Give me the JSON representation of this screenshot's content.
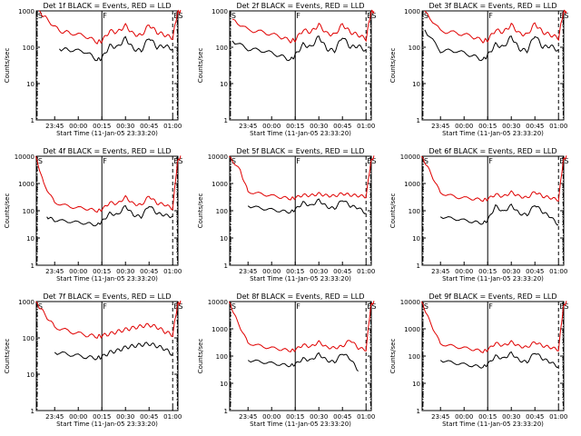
{
  "chart_data": [
    {
      "type": "line",
      "title": "Det 1f BLACK = Events, RED = LLD",
      "ylabel": "Counts/sec",
      "xlabel": "Start Time (11-Jan-05 23:33:20)",
      "xticks": [
        "23:45",
        "00:00",
        "00:15",
        "00:30",
        "00:45",
        "01:00"
      ],
      "yscale": "log",
      "ylim": [
        1,
        1000
      ],
      "yticks": [
        "1",
        "10",
        "100",
        "1000"
      ],
      "markers": [
        {
          "label": "S",
          "x": "23:33"
        },
        {
          "label": "F",
          "x": "00:15"
        },
        {
          "label": "E",
          "x": "01:00"
        },
        {
          "label": "S",
          "x": "01:03"
        }
      ],
      "series": [
        {
          "color": "#000000",
          "x": [
            "23:48",
            "23:55",
            "00:05",
            "00:12",
            "00:15",
            "00:20",
            "00:25",
            "00:30",
            "00:35",
            "00:40",
            "00:45",
            "00:50",
            "00:55",
            "01:00"
          ],
          "y": [
            90,
            85,
            75,
            45,
            50,
            110,
            100,
            180,
            90,
            80,
            190,
            100,
            110,
            90
          ]
        },
        {
          "color": "#e00000",
          "x": [
            "23:35",
            "23:40",
            "23:48",
            "23:55",
            "00:05",
            "00:12",
            "00:15",
            "00:20",
            "00:25",
            "00:30",
            "00:35",
            "00:40",
            "00:45",
            "00:50",
            "00:55",
            "01:00",
            "01:03",
            "01:05"
          ],
          "y": [
            1000,
            600,
            280,
            250,
            200,
            140,
            150,
            280,
            260,
            400,
            230,
            210,
            420,
            260,
            220,
            180,
            900,
            1000
          ]
        }
      ]
    },
    {
      "type": "line",
      "title": "Det 2f BLACK = Events, RED = LLD",
      "ylabel": "Counts/sec",
      "xlabel": "Start Time (11-Jan-05 23:33:20)",
      "xticks": [
        "23:45",
        "00:00",
        "00:15",
        "00:30",
        "00:45",
        "01:00"
      ],
      "yscale": "log",
      "ylim": [
        1,
        1000
      ],
      "yticks": [
        "1",
        "10",
        "100",
        "1000"
      ],
      "markers": [
        {
          "label": "S",
          "x": "23:33"
        },
        {
          "label": "F",
          "x": "00:15"
        },
        {
          "label": "E",
          "x": "01:00"
        },
        {
          "label": "S",
          "x": "01:03"
        }
      ],
      "series": [
        {
          "color": "#000000",
          "x": [
            "23:35",
            "23:45",
            "23:55",
            "00:05",
            "00:12",
            "00:15",
            "00:20",
            "00:25",
            "00:30",
            "00:35",
            "00:40",
            "00:45",
            "00:50",
            "00:55",
            "01:00"
          ],
          "y": [
            150,
            90,
            80,
            60,
            45,
            60,
            120,
            100,
            200,
            90,
            80,
            200,
            100,
            110,
            80
          ]
        },
        {
          "color": "#e00000",
          "x": [
            "23:35",
            "23:45",
            "23:55",
            "00:05",
            "00:12",
            "00:15",
            "00:20",
            "00:25",
            "00:30",
            "00:35",
            "00:40",
            "00:45",
            "00:50",
            "00:55",
            "01:00",
            "01:03",
            "01:05"
          ],
          "y": [
            600,
            300,
            260,
            200,
            150,
            160,
            300,
            260,
            420,
            240,
            220,
            430,
            260,
            220,
            170,
            900,
            1000
          ]
        }
      ]
    },
    {
      "type": "line",
      "title": "Det 3f BLACK = Events, RED = LLD",
      "ylabel": "Counts/sec",
      "xlabel": "Start Time (11-Jan-05 23:33:20)",
      "xticks": [
        "23:45",
        "00:00",
        "00:15",
        "00:30",
        "00:45",
        "01:00"
      ],
      "yscale": "log",
      "ylim": [
        1,
        1000
      ],
      "yticks": [
        "1",
        "10",
        "100",
        "1000"
      ],
      "markers": [
        {
          "label": "S",
          "x": "23:33"
        },
        {
          "label": "F",
          "x": "00:15"
        },
        {
          "label": "E",
          "x": "01:00"
        },
        {
          "label": "S",
          "x": "01:03"
        }
      ],
      "series": [
        {
          "color": "#000000",
          "x": [
            "23:35",
            "23:45",
            "23:55",
            "00:05",
            "00:12",
            "00:15",
            "00:20",
            "00:25",
            "00:30",
            "00:35",
            "00:40",
            "00:45",
            "00:50",
            "00:55",
            "01:00"
          ],
          "y": [
            300,
            80,
            80,
            60,
            45,
            60,
            120,
            100,
            200,
            90,
            80,
            220,
            100,
            110,
            80
          ]
        },
        {
          "color": "#e00000",
          "x": [
            "23:35",
            "23:45",
            "23:55",
            "00:05",
            "00:12",
            "00:15",
            "00:20",
            "00:25",
            "00:30",
            "00:35",
            "00:40",
            "00:45",
            "00:50",
            "00:55",
            "01:00",
            "01:03",
            "01:05"
          ],
          "y": [
            1000,
            280,
            250,
            200,
            150,
            160,
            300,
            260,
            420,
            240,
            220,
            450,
            260,
            220,
            180,
            900,
            1000
          ]
        }
      ]
    },
    {
      "type": "line",
      "title": "Det 4f BLACK = Events, RED = LLD",
      "ylabel": "Counts/sec",
      "xlabel": "Start Time (11-Jan-05 23:33:20)",
      "xticks": [
        "23:45",
        "00:00",
        "00:15",
        "00:30",
        "00:45",
        "01:00"
      ],
      "yscale": "log",
      "ylim": [
        1,
        10000
      ],
      "yticks": [
        "1",
        "10",
        "100",
        "1000",
        "10000"
      ],
      "markers": [
        {
          "label": "S",
          "x": "23:33"
        },
        {
          "label": "F",
          "x": "00:15"
        },
        {
          "label": "E",
          "x": "01:00"
        },
        {
          "label": "S",
          "x": "01:03"
        }
      ],
      "series": [
        {
          "color": "#000000",
          "x": [
            "23:40",
            "23:45",
            "23:55",
            "00:05",
            "00:12",
            "00:15",
            "00:20",
            "00:25",
            "00:30",
            "00:35",
            "00:40",
            "00:45",
            "00:50",
            "00:55",
            "01:00"
          ],
          "y": [
            60,
            45,
            40,
            35,
            30,
            40,
            80,
            70,
            150,
            70,
            60,
            160,
            80,
            70,
            60
          ]
        },
        {
          "color": "#e00000",
          "x": [
            "23:33",
            "23:38",
            "23:45",
            "23:55",
            "00:05",
            "00:12",
            "00:15",
            "00:20",
            "00:25",
            "00:30",
            "00:35",
            "00:40",
            "00:45",
            "00:50",
            "00:55",
            "01:00",
            "01:03",
            "01:05"
          ],
          "y": [
            10000,
            1000,
            200,
            140,
            120,
            100,
            110,
            200,
            180,
            320,
            180,
            160,
            350,
            190,
            170,
            120,
            6000,
            10000
          ]
        }
      ]
    },
    {
      "type": "line",
      "title": "Det 5f BLACK = Events, RED = LLD",
      "ylabel": "Counts/sec",
      "xlabel": "Start Time (11-Jan-05 23:33:20)",
      "xticks": [
        "23:45",
        "00:00",
        "00:15",
        "00:30",
        "00:45",
        "01:00"
      ],
      "yscale": "log",
      "ylim": [
        1,
        10000
      ],
      "yticks": [
        "1",
        "10",
        "100",
        "1000",
        "10000"
      ],
      "markers": [
        {
          "label": "S",
          "x": "23:33"
        },
        {
          "label": "F",
          "x": "00:15"
        },
        {
          "label": "E",
          "x": "01:00"
        },
        {
          "label": "S",
          "x": "01:03"
        }
      ],
      "series": [
        {
          "color": "#000000",
          "x": [
            "23:45",
            "23:55",
            "00:05",
            "00:12",
            "00:15",
            "00:20",
            "00:25",
            "00:30",
            "00:35",
            "00:40",
            "00:45",
            "00:50",
            "00:55",
            "01:00"
          ],
          "y": [
            150,
            120,
            100,
            90,
            110,
            200,
            150,
            250,
            140,
            120,
            260,
            150,
            130,
            80
          ]
        },
        {
          "color": "#e00000",
          "x": [
            "23:33",
            "23:40",
            "23:45",
            "23:55",
            "00:05",
            "00:12",
            "00:15",
            "00:20",
            "00:25",
            "00:30",
            "00:35",
            "00:40",
            "00:45",
            "00:50",
            "00:55",
            "01:00",
            "01:03",
            "01:05"
          ],
          "y": [
            10000,
            3000,
            500,
            400,
            320,
            280,
            300,
            380,
            360,
            420,
            360,
            350,
            430,
            380,
            360,
            330,
            6000,
            10000
          ]
        }
      ]
    },
    {
      "type": "line",
      "title": "Det 6f BLACK = Events, RED = LLD",
      "ylabel": "Counts/sec",
      "xlabel": "Start Time (11-Jan-05 23:33:20)",
      "xticks": [
        "23:45",
        "00:00",
        "00:15",
        "00:30",
        "00:45",
        "01:00"
      ],
      "yscale": "log",
      "ylim": [
        1,
        10000
      ],
      "yticks": [
        "1",
        "10",
        "100",
        "1000",
        "10000"
      ],
      "markers": [
        {
          "label": "S",
          "x": "23:33"
        },
        {
          "label": "F",
          "x": "00:15"
        },
        {
          "label": "E",
          "x": "01:00"
        },
        {
          "label": "S",
          "x": "01:03"
        }
      ],
      "series": [
        {
          "color": "#000000",
          "x": [
            "23:45",
            "23:55",
            "00:05",
            "00:12",
            "00:15",
            "00:20",
            "00:25",
            "00:30",
            "00:35",
            "00:40",
            "00:45",
            "00:50",
            "00:55",
            "01:00"
          ],
          "y": [
            60,
            50,
            40,
            35,
            45,
            150,
            90,
            160,
            80,
            70,
            170,
            90,
            60,
            30
          ]
        },
        {
          "color": "#e00000",
          "x": [
            "23:33",
            "23:38",
            "23:45",
            "23:55",
            "00:05",
            "00:12",
            "00:15",
            "00:20",
            "00:25",
            "00:30",
            "00:35",
            "00:40",
            "00:45",
            "00:50",
            "00:55",
            "01:00",
            "01:03",
            "01:05"
          ],
          "y": [
            10000,
            3000,
            450,
            320,
            280,
            250,
            270,
            400,
            330,
            480,
            340,
            300,
            500,
            340,
            300,
            250,
            7000,
            10000
          ]
        }
      ]
    },
    {
      "type": "line",
      "title": "Det 7f BLACK = Events, RED = LLD",
      "ylabel": "Counts/sec",
      "xlabel": "Start Time (11-Jan-05 23:33:20)",
      "xticks": [
        "23:45",
        "00:00",
        "00:15",
        "00:30",
        "00:45",
        "01:00"
      ],
      "yscale": "log",
      "ylim": [
        1,
        1000
      ],
      "yticks": [
        "1",
        "10",
        "100",
        "1000"
      ],
      "markers": [
        {
          "label": "S",
          "x": "23:33"
        },
        {
          "label": "F",
          "x": "00:15"
        },
        {
          "label": "E",
          "x": "01:00"
        },
        {
          "label": "S",
          "x": "01:03"
        }
      ],
      "series": [
        {
          "color": "#000000",
          "x": [
            "23:45",
            "23:55",
            "00:05",
            "00:12",
            "00:15",
            "00:20",
            "00:25",
            "00:30",
            "00:35",
            "00:40",
            "00:45",
            "00:50",
            "00:55",
            "01:00"
          ],
          "y": [
            40,
            35,
            30,
            28,
            30,
            40,
            45,
            55,
            60,
            65,
            70,
            60,
            50,
            35
          ]
        },
        {
          "color": "#e00000",
          "x": [
            "23:33",
            "23:38",
            "23:45",
            "23:55",
            "00:05",
            "00:12",
            "00:15",
            "00:20",
            "00:25",
            "00:30",
            "00:35",
            "00:40",
            "00:45",
            "00:50",
            "00:55",
            "01:00",
            "01:03",
            "01:05"
          ],
          "y": [
            1000,
            500,
            200,
            150,
            120,
            110,
            115,
            130,
            150,
            170,
            190,
            210,
            230,
            200,
            150,
            120,
            800,
            1000
          ]
        }
      ]
    },
    {
      "type": "line",
      "title": "Det 8f BLACK = Events, RED = LLD",
      "ylabel": "Counts/sec",
      "xlabel": "Start Time (11-Jan-05 23:33:20)",
      "xticks": [
        "23:45",
        "00:00",
        "00:15",
        "00:30",
        "00:45",
        "01:00"
      ],
      "yscale": "log",
      "ylim": [
        1,
        10000
      ],
      "yticks": [
        "1",
        "10",
        "100",
        "1000",
        "10000"
      ],
      "markers": [
        {
          "label": "S",
          "x": "23:33"
        },
        {
          "label": "F",
          "x": "00:15"
        },
        {
          "label": "E",
          "x": "01:00"
        },
        {
          "label": "S",
          "x": "01:03"
        }
      ],
      "series": [
        {
          "color": "#000000",
          "x": [
            "23:45",
            "23:55",
            "00:05",
            "00:12",
            "00:15",
            "00:20",
            "00:25",
            "00:30",
            "00:35",
            "00:40",
            "00:45",
            "00:50",
            "00:55"
          ],
          "y": [
            70,
            60,
            50,
            45,
            50,
            80,
            70,
            120,
            70,
            60,
            130,
            80,
            30
          ]
        },
        {
          "color": "#e00000",
          "x": [
            "23:33",
            "23:38",
            "23:45",
            "23:55",
            "00:05",
            "00:12",
            "00:15",
            "00:20",
            "00:25",
            "00:30",
            "00:35",
            "00:40",
            "00:45",
            "00:50",
            "00:55",
            "01:00",
            "01:03",
            "01:05"
          ],
          "y": [
            10000,
            2000,
            300,
            220,
            180,
            160,
            170,
            260,
            220,
            330,
            210,
            200,
            230,
            400,
            200,
            170,
            7000,
            10000
          ]
        }
      ]
    },
    {
      "type": "line",
      "title": "Det 9f BLACK = Events, RED = LLD",
      "ylabel": "Counts/sec",
      "xlabel": "Start Time (11-Jan-05 23:33:20)",
      "xticks": [
        "23:45",
        "00:00",
        "00:15",
        "00:30",
        "00:45",
        "01:00"
      ],
      "yscale": "log",
      "ylim": [
        1,
        10000
      ],
      "yticks": [
        "1",
        "10",
        "100",
        "1000",
        "10000"
      ],
      "markers": [
        {
          "label": "S",
          "x": "23:33"
        },
        {
          "label": "F",
          "x": "00:15"
        },
        {
          "label": "E",
          "x": "01:00"
        },
        {
          "label": "S",
          "x": "01:03"
        }
      ],
      "series": [
        {
          "color": "#000000",
          "x": [
            "23:45",
            "23:55",
            "00:05",
            "00:12",
            "00:15",
            "00:20",
            "00:25",
            "00:30",
            "00:35",
            "00:40",
            "00:45",
            "00:50",
            "00:55",
            "01:00"
          ],
          "y": [
            70,
            55,
            45,
            40,
            50,
            100,
            80,
            130,
            70,
            60,
            140,
            80,
            60,
            40
          ]
        },
        {
          "color": "#e00000",
          "x": [
            "23:33",
            "23:38",
            "23:45",
            "23:55",
            "00:05",
            "00:12",
            "00:15",
            "00:20",
            "00:25",
            "00:30",
            "00:35",
            "00:40",
            "00:45",
            "00:50",
            "00:55",
            "01:00",
            "01:03",
            "01:05"
          ],
          "y": [
            10000,
            2000,
            280,
            220,
            180,
            150,
            170,
            300,
            240,
            330,
            230,
            210,
            330,
            240,
            210,
            170,
            6000,
            10000
          ]
        }
      ]
    }
  ]
}
